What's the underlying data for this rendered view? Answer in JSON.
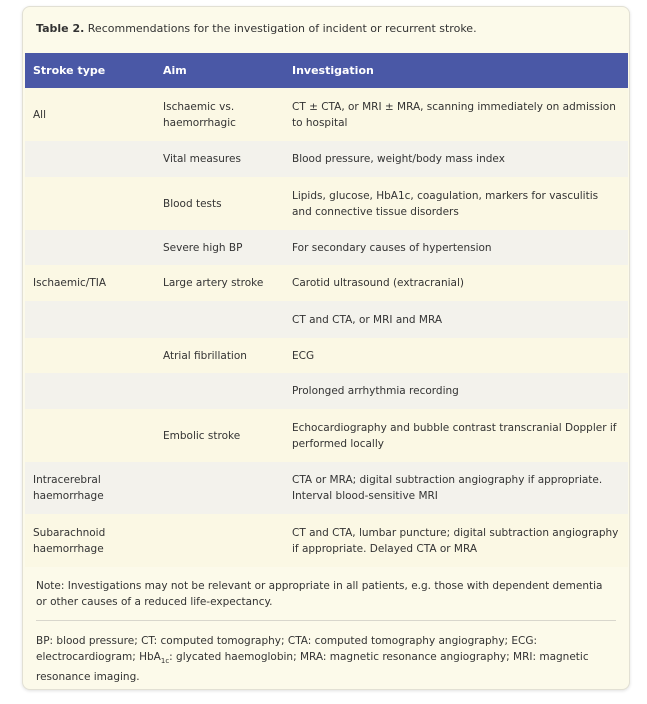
{
  "title": {
    "label": "Table 2.",
    "text": " Recommendations for the investigation of incident or recurrent stroke."
  },
  "table": {
    "headers": [
      "Stroke type",
      "Aim",
      "Investigation"
    ],
    "rows": [
      [
        "All",
        "Ischaemic vs. haemorrhagic",
        "CT ± CTA, or MRI ± MRA, scanning immediately on admission to hospital"
      ],
      [
        null,
        "Vital measures",
        "Blood pressure, weight/body mass index"
      ],
      [
        null,
        "Blood tests",
        "Lipids, glucose, HbA1c, coagulation, markers for vasculitis and connective tissue disorders"
      ],
      [
        null,
        "Severe high BP",
        "For secondary causes of hypertension"
      ],
      [
        "Ischaemic/TIA",
        "Large artery stroke",
        "Carotid ultrasound (extracranial)"
      ],
      [
        null,
        null,
        "CT and CTA, or MRI and MRA"
      ],
      [
        null,
        "Atrial fibrillation",
        "ECG"
      ],
      [
        null,
        null,
        "Prolonged arrhythmia recording"
      ],
      [
        null,
        "Embolic stroke",
        "Echocardiography and bubble contrast transcranial Doppler if performed locally"
      ],
      [
        "Intracerebral haemorrhage",
        null,
        "CTA or MRA; digital subtraction angiography if appropriate. Interval blood-sensitive MRI"
      ],
      [
        "Subarachnoid haemorrhage",
        null,
        "CT and CTA, lumbar puncture; digital subtraction angiography if appropriate. Delayed CTA or MRA"
      ]
    ]
  },
  "note": "Note: Investigations may not be relevant or appropriate in all patients, e.g. those with dependent dementia or other causes of a reduced life-expectancy.",
  "abbreviations": [
    "BP: blood pressure; CT: computed tomography; CTA: computed tomography angiography; ECG: electrocardiogram; HbA",
    "1c",
    ": glycated haemoglobin; MRA: magnetic resonance angiography; MRI: magnetic resonance imaging."
  ]
}
